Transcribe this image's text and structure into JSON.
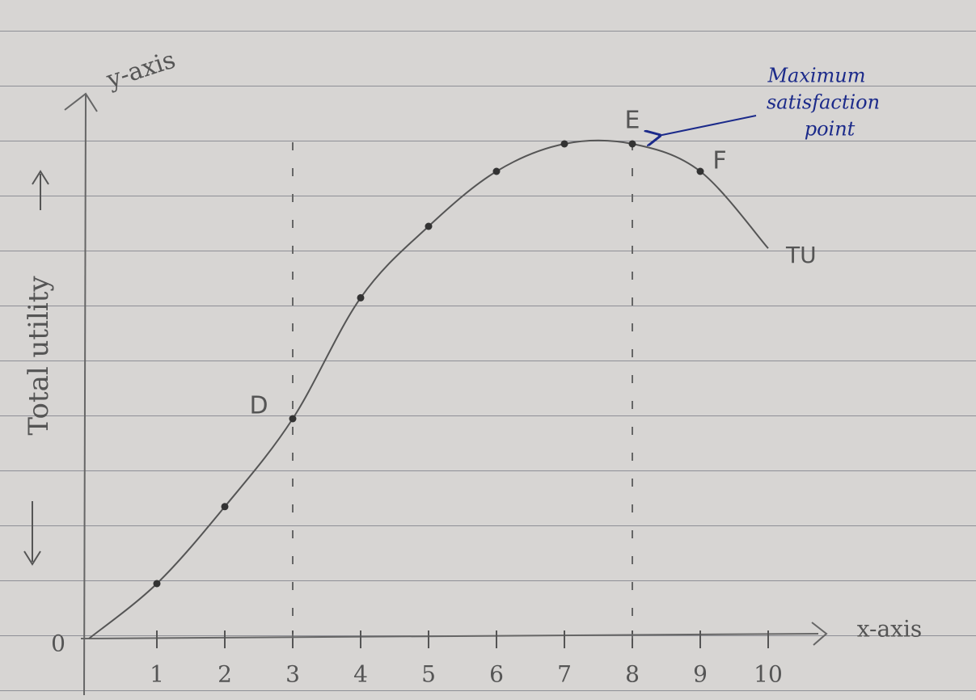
{
  "chart_data": {
    "type": "line",
    "y_axis_label": "y-axis",
    "x_axis_label": "x-axis",
    "ylabel": "Total utility",
    "x": [
      0,
      1,
      2,
      3,
      4,
      5,
      6,
      7,
      8,
      9,
      10
    ],
    "series": [
      {
        "name": "TU",
        "color": "#555555",
        "values": [
          0,
          1,
          2.4,
          4,
          6.2,
          7.5,
          8.5,
          9,
          9,
          8.5,
          7.1
        ]
      }
    ],
    "point_labels": [
      null,
      null,
      null,
      "D",
      null,
      null,
      null,
      null,
      "E",
      "F",
      null
    ],
    "xlim": [
      0,
      10.5
    ],
    "ylim": [
      0,
      10.5
    ],
    "xticks": [
      0,
      1,
      2,
      3,
      4,
      5,
      6,
      7,
      8,
      9,
      10
    ],
    "annotation": [
      "Maximum",
      "satisfaction",
      "point"
    ],
    "annotation_color": "#1b2a8a"
  }
}
